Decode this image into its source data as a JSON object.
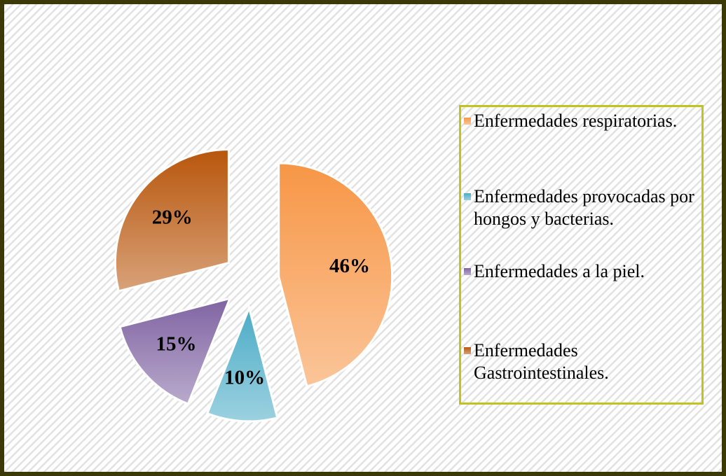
{
  "chart_data": {
    "type": "pie",
    "categories": [
      "Enfermedades respiratorias.",
      "Enfermedades provocadas por hongos y bacterias.",
      "Enfermedades a la piel.",
      "Enfermedades Gastrointestinales."
    ],
    "values": [
      46,
      10,
      15,
      29
    ],
    "value_labels": [
      "46%",
      "10%",
      "15%",
      "29%"
    ],
    "colors": [
      "#f79646",
      "#4bacc6",
      "#8064a2",
      "#b8560c"
    ],
    "legend": "right"
  }
}
